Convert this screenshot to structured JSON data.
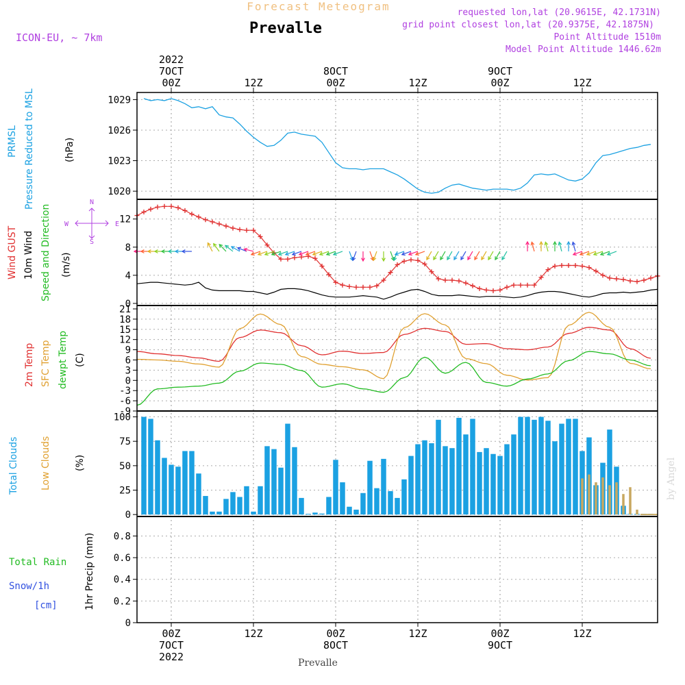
{
  "header": {
    "forecast_title": "Forecast Meteogram",
    "location": "Prevalle",
    "model": "ICON-EU, ~ 7km",
    "requested": "requested lon,lat (20.9615E, 42.1731N)",
    "grid_point": "grid point closest lon,lat (20.9375E, 42.1875N)",
    "point_altitude": "Point Altitude 1510m",
    "model_altitude": "Model Point Altitude 1446.62m",
    "watermark": "by Angel",
    "footer_location": "Prevalle"
  },
  "time_axis": {
    "top_labels": [
      {
        "t": 0,
        "lines": [
          "2022",
          "7OCT",
          "00Z"
        ]
      },
      {
        "t": 12,
        "lines": [
          "12Z"
        ]
      },
      {
        "t": 24,
        "lines": [
          "8OCT",
          "00Z"
        ]
      },
      {
        "t": 36,
        "lines": [
          "12Z"
        ]
      },
      {
        "t": 48,
        "lines": [
          "9OCT",
          "00Z"
        ]
      },
      {
        "t": 60,
        "lines": [
          "12Z"
        ]
      }
    ],
    "bottom_labels": [
      {
        "t": 0,
        "lines": [
          "00Z",
          "7OCT",
          "2022"
        ]
      },
      {
        "t": 12,
        "lines": [
          "12Z"
        ]
      },
      {
        "t": 24,
        "lines": [
          "00Z",
          "8OCT"
        ]
      },
      {
        "t": 36,
        "lines": [
          "12Z"
        ]
      },
      {
        "t": 48,
        "lines": [
          "00Z",
          "9OCT"
        ]
      },
      {
        "t": 60,
        "lines": [
          "12Z"
        ]
      }
    ],
    "xlim_hours": [
      -5,
      71
    ]
  },
  "panels": {
    "pressure": {
      "labels": [
        {
          "text": "PRMSL",
          "color": "#1ba1e2"
        },
        {
          "text": "Pressure Reduced to MSL",
          "color": "#1ba1e2"
        },
        {
          "text": "(hPa)",
          "color": "#000000"
        }
      ],
      "ticks": [
        "1020",
        "1023",
        "1026",
        "1029"
      ],
      "ylim": [
        1019.2,
        1029.7
      ]
    },
    "wind": {
      "labels": [
        {
          "text": "Wind GUST",
          "color": "#e03030"
        },
        {
          "text": "10m Wind",
          "color": "#000000"
        },
        {
          "text": "Speed and Direction",
          "color": "#22bb22"
        },
        {
          "text": "(m/s)",
          "color": "#000000"
        }
      ],
      "compass": {
        "north": "N",
        "south": "S",
        "west": "W",
        "east": "E",
        "color": "#b040e0"
      },
      "ticks": [
        "0",
        "4",
        "8",
        "12"
      ],
      "ylim": [
        -0.3,
        14.8
      ]
    },
    "temperature": {
      "labels": [
        {
          "text": "2m Temp",
          "color": "#e03030"
        },
        {
          "text": "SFC Temp",
          "color": "#e0a030"
        },
        {
          "text": "dewpt Temp",
          "color": "#22bb22"
        },
        {
          "text": "(C)",
          "color": "#000000"
        }
      ],
      "ticks": [
        "-9",
        "-6",
        "-3",
        "0",
        "3",
        "6",
        "9",
        "12",
        "15",
        "18",
        "21"
      ],
      "ylim": [
        -9,
        22
      ]
    },
    "clouds": {
      "labels": [
        {
          "text": "Total Clouds",
          "color": "#1ba1e2"
        },
        {
          "text": "Low Clouds",
          "color": "#e0a030"
        },
        {
          "text": "(%)",
          "color": "#000000"
        }
      ],
      "ticks": [
        "0",
        "25",
        "50",
        "75",
        "100"
      ],
      "ylim": [
        -2,
        106
      ]
    },
    "precip": {
      "labels": [
        {
          "text": "Total  Rain",
          "color": "#22bb22"
        },
        {
          "text": "Snow/1h",
          "color": "#3050e0"
        },
        {
          "text": "[cm]",
          "color": "#3050e0"
        },
        {
          "text": "1hr Precip (mm)",
          "color": "#000000"
        }
      ],
      "ticks": [
        "0",
        "0.2",
        "0.4",
        "0.6",
        "0.8"
      ],
      "ylim": [
        0,
        0.98
      ]
    }
  },
  "colors": {
    "pressure": "#1ba1e2",
    "gust": "#e03030",
    "wind_speed": "#000000",
    "temp2m": "#e03030",
    "sfc_temp": "#e0a030",
    "dewpoint": "#22bb22",
    "total_clouds": "#1ba1e2",
    "low_clouds": "#c8a860"
  },
  "chart_data": [
    {
      "type": "line",
      "panel": "pressure",
      "ylabel": "PRMSL Pressure Reduced to MSL (hPa)",
      "series": [
        {
          "name": "PRMSL",
          "x_hours": [
            -4,
            -3,
            -2,
            -1,
            0,
            1,
            2,
            3,
            4,
            5,
            6,
            7,
            8,
            9,
            10,
            11,
            12,
            13,
            14,
            15,
            16,
            17,
            18,
            19,
            20,
            21,
            22,
            23,
            24,
            25,
            26,
            27,
            28,
            29,
            30,
            31,
            32,
            33,
            34,
            35,
            36,
            37,
            38,
            39,
            40,
            41,
            42,
            43,
            44,
            45,
            46,
            47,
            48,
            49,
            50,
            51,
            52,
            53,
            54,
            55,
            56,
            57,
            58,
            59,
            60,
            61,
            62,
            63,
            64,
            65,
            66,
            67,
            68,
            69,
            70
          ],
          "values": [
            1029.1,
            1028.9,
            1029.0,
            1028.9,
            1029.1,
            1028.9,
            1028.6,
            1028.2,
            1028.3,
            1028.1,
            1028.3,
            1027.5,
            1027.3,
            1027.2,
            1026.6,
            1025.9,
            1025.3,
            1024.8,
            1024.4,
            1024.5,
            1025.0,
            1025.7,
            1025.8,
            1025.6,
            1025.5,
            1025.4,
            1024.8,
            1023.8,
            1022.8,
            1022.3,
            1022.2,
            1022.2,
            1022.1,
            1022.2,
            1022.2,
            1022.2,
            1021.9,
            1021.6,
            1021.2,
            1020.7,
            1020.2,
            1019.9,
            1019.8,
            1019.9,
            1020.3,
            1020.6,
            1020.7,
            1020.5,
            1020.3,
            1020.2,
            1020.1,
            1020.2,
            1020.2,
            1020.2,
            1020.1,
            1020.3,
            1020.8,
            1021.6,
            1021.7,
            1021.6,
            1021.7,
            1021.4,
            1021.1,
            1021.0,
            1021.2,
            1021.8,
            1022.8,
            1023.5,
            1023.6,
            1023.8,
            1024.0,
            1024.2,
            1024.3,
            1024.5,
            1024.6
          ]
        }
      ]
    },
    {
      "type": "line",
      "panel": "wind",
      "ylabel": "Wind GUST / 10m Wind Speed and Direction (m/s)",
      "series": [
        {
          "name": "Wind GUST",
          "x_hours": [
            -5,
            -4,
            -3,
            -2,
            -1,
            0,
            1,
            2,
            3,
            4,
            5,
            6,
            7,
            8,
            9,
            10,
            11,
            12,
            13,
            14,
            15,
            16,
            17,
            18,
            19,
            20,
            21,
            22,
            23,
            24,
            25,
            26,
            27,
            28,
            29,
            30,
            31,
            32,
            33,
            34,
            35,
            36,
            37,
            38,
            39,
            40,
            41,
            42,
            43,
            44,
            45,
            46,
            47,
            48,
            49,
            50,
            51,
            52,
            53,
            54,
            55,
            56,
            57,
            58,
            59,
            60,
            61,
            62,
            63,
            64,
            65,
            66,
            67,
            68,
            69,
            70,
            71
          ],
          "values": [
            12.5,
            13.0,
            13.4,
            13.7,
            13.8,
            13.8,
            13.6,
            13.2,
            12.7,
            12.3,
            11.9,
            11.6,
            11.3,
            11.0,
            10.7,
            10.5,
            10.4,
            10.4,
            9.5,
            8.3,
            7.2,
            6.3,
            6.3,
            6.5,
            6.6,
            6.7,
            6.4,
            5.3,
            4.1,
            3.0,
            2.6,
            2.4,
            2.3,
            2.3,
            2.3,
            2.5,
            3.3,
            4.4,
            5.5,
            6.0,
            6.2,
            6.1,
            5.6,
            4.5,
            3.5,
            3.3,
            3.3,
            3.2,
            2.9,
            2.5,
            2.1,
            1.9,
            1.8,
            1.9,
            2.3,
            2.6,
            2.6,
            2.6,
            2.6,
            3.7,
            4.8,
            5.3,
            5.4,
            5.4,
            5.4,
            5.3,
            5.1,
            4.6,
            4.0,
            3.6,
            3.5,
            3.4,
            3.2,
            3.1,
            3.3,
            3.6,
            3.9
          ]
        },
        {
          "name": "10m Wind",
          "x_hours": [
            -5,
            -4,
            -3,
            -2,
            -1,
            0,
            1,
            2,
            3,
            4,
            5,
            6,
            7,
            8,
            9,
            10,
            11,
            12,
            13,
            14,
            15,
            16,
            17,
            18,
            19,
            20,
            21,
            22,
            23,
            24,
            25,
            26,
            27,
            28,
            29,
            30,
            31,
            32,
            33,
            34,
            35,
            36,
            37,
            38,
            39,
            40,
            41,
            42,
            43,
            44,
            45,
            46,
            47,
            48,
            49,
            50,
            51,
            52,
            53,
            54,
            55,
            56,
            57,
            58,
            59,
            60,
            61,
            62,
            63,
            64,
            65,
            66,
            67,
            68,
            69,
            70,
            71
          ],
          "values": [
            2.8,
            2.9,
            3.0,
            3.0,
            2.9,
            2.8,
            2.7,
            2.6,
            2.7,
            3.0,
            2.2,
            1.9,
            1.8,
            1.8,
            1.8,
            1.8,
            1.7,
            1.7,
            1.5,
            1.3,
            1.6,
            2.0,
            2.1,
            2.1,
            2.0,
            1.8,
            1.5,
            1.2,
            1.0,
            0.9,
            0.9,
            0.9,
            1.0,
            1.1,
            1.0,
            0.9,
            0.6,
            0.9,
            1.3,
            1.6,
            1.9,
            2.0,
            1.7,
            1.3,
            1.1,
            1.1,
            1.1,
            1.2,
            1.1,
            1.0,
            0.9,
            1.0,
            1.0,
            1.0,
            0.9,
            0.8,
            0.9,
            1.1,
            1.4,
            1.6,
            1.7,
            1.7,
            1.6,
            1.4,
            1.2,
            1.0,
            0.9,
            1.1,
            1.4,
            1.5,
            1.5,
            1.6,
            1.5,
            1.6,
            1.7,
            1.9,
            2.0
          ]
        }
      ]
    },
    {
      "type": "line",
      "panel": "temperature",
      "ylabel": "2m Temp / SFC Temp / dewpt Temp (C)",
      "series": [
        {
          "name": "2m Temp",
          "x_hours": [
            -5,
            -2,
            1,
            4,
            7,
            10,
            13,
            16,
            19,
            22,
            25,
            28,
            31,
            34,
            37,
            40,
            43,
            46,
            49,
            52,
            55,
            58,
            61,
            64,
            67,
            70
          ],
          "values": [
            8.5,
            7.8,
            7.3,
            6.6,
            5.6,
            12.6,
            14.8,
            14.0,
            10.2,
            7.5,
            8.6,
            7.9,
            8.2,
            13.5,
            15.3,
            14.4,
            10.6,
            10.8,
            9.3,
            9.0,
            9.8,
            13.8,
            15.6,
            14.8,
            9.3,
            6.5
          ]
        },
        {
          "name": "SFC Temp",
          "x_hours": [
            -5,
            -2,
            1,
            4,
            7,
            10,
            13,
            16,
            19,
            22,
            25,
            28,
            31,
            34,
            37,
            40,
            43,
            46,
            49,
            52,
            55,
            58,
            61,
            64,
            67,
            70
          ],
          "values": [
            6.2,
            6.0,
            5.6,
            4.8,
            3.9,
            15.2,
            19.5,
            16.4,
            7.0,
            4.7,
            4.0,
            3.1,
            0.5,
            15.5,
            19.6,
            16.3,
            6.4,
            4.9,
            1.5,
            0.1,
            0.8,
            16.2,
            20.0,
            15.6,
            5.0,
            3.4
          ]
        },
        {
          "name": "dewpt Temp",
          "x_hours": [
            -5,
            -2,
            1,
            4,
            7,
            10,
            13,
            16,
            19,
            22,
            25,
            28,
            31,
            34,
            37,
            40,
            43,
            46,
            49,
            52,
            55,
            58,
            61,
            64,
            67,
            70
          ],
          "values": [
            -7.3,
            -2.5,
            -2.0,
            -1.7,
            -0.8,
            2.7,
            5.1,
            4.7,
            2.9,
            -2.0,
            -1.0,
            -2.5,
            -3.5,
            0.8,
            6.8,
            2.1,
            5.3,
            -0.6,
            -1.7,
            0.4,
            1.9,
            5.8,
            8.5,
            7.8,
            6.0,
            4.3
          ]
        }
      ]
    },
    {
      "type": "bar",
      "panel": "clouds",
      "ylabel": "Total Clouds / Low Clouds (%)",
      "series": [
        {
          "name": "Total Clouds",
          "x_hours": [
            -4,
            -3,
            -2,
            -1,
            0,
            1,
            2,
            3,
            4,
            5,
            6,
            7,
            8,
            9,
            10,
            11,
            12,
            13,
            14,
            15,
            16,
            17,
            18,
            19,
            20,
            21,
            22,
            23,
            24,
            25,
            26,
            27,
            28,
            29,
            30,
            31,
            32,
            33,
            34,
            35,
            36,
            37,
            38,
            39,
            40,
            41,
            42,
            43,
            44,
            45,
            46,
            47,
            48,
            49,
            50,
            51,
            52,
            53,
            54,
            55,
            56,
            57,
            58,
            59,
            60,
            61,
            62,
            63,
            64,
            65,
            66,
            67,
            68,
            69,
            70
          ],
          "values": [
            100,
            98,
            76,
            58,
            51,
            49,
            65,
            65,
            42,
            19,
            3,
            3,
            16,
            23,
            18,
            29,
            3,
            29,
            70,
            67,
            48,
            93,
            69,
            17,
            0,
            2,
            1,
            18,
            56,
            33,
            8,
            5,
            22,
            55,
            27,
            57,
            24,
            17,
            36,
            60,
            72,
            76,
            73,
            97,
            70,
            68,
            99,
            82,
            98,
            64,
            68,
            62,
            60,
            72,
            82,
            100,
            100,
            97,
            100,
            96,
            75,
            93,
            98,
            98,
            65,
            79,
            30,
            53,
            87,
            49,
            9,
            0,
            0,
            0,
            0
          ]
        },
        {
          "name": "Low Clouds",
          "x_hours": [
            60,
            61,
            62,
            63,
            64,
            65,
            66,
            67,
            68
          ],
          "values": [
            37,
            41,
            33,
            38,
            30,
            33,
            21,
            28,
            5
          ]
        }
      ]
    },
    {
      "type": "line",
      "panel": "precip",
      "ylabel": "1hr Precip (mm)",
      "ylim": [
        0,
        0.98
      ],
      "series": []
    }
  ]
}
